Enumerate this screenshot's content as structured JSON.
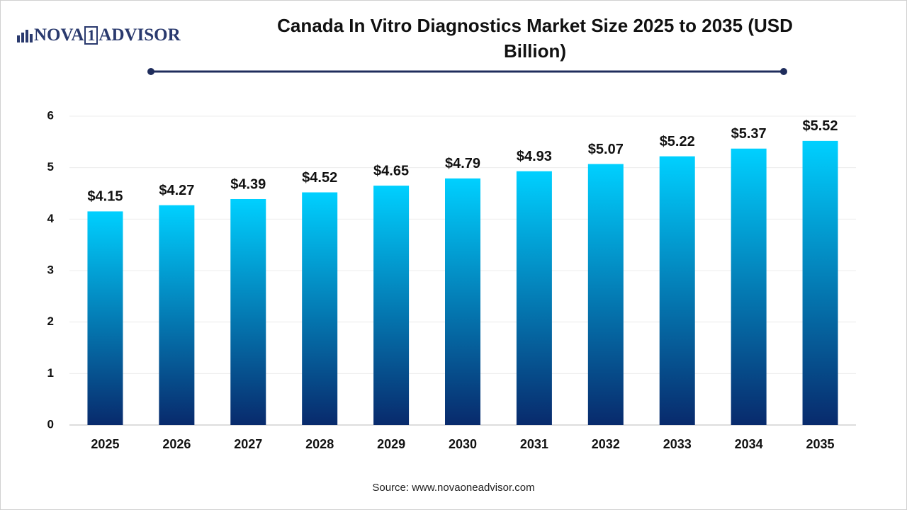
{
  "logo": {
    "left": "NOVA",
    "mark": "1",
    "right": "ADVISOR"
  },
  "source": "Source: www.novaoneadvisor.com",
  "chart_data": {
    "type": "bar",
    "title": "Canada In Vitro Diagnostics Market Size 2025 to 2035 (USD Billion)",
    "categories": [
      "2025",
      "2026",
      "2027",
      "2028",
      "2029",
      "2030",
      "2031",
      "2032",
      "2033",
      "2034",
      "2035"
    ],
    "values": [
      4.15,
      4.27,
      4.39,
      4.52,
      4.65,
      4.79,
      4.93,
      5.07,
      5.22,
      5.37,
      5.52
    ],
    "value_labels": [
      "$4.15",
      "$4.27",
      "$4.39",
      "$4.52",
      "$4.65",
      "$4.79",
      "$4.93",
      "$5.07",
      "$5.22",
      "$5.37",
      "$5.52"
    ],
    "color": [
      "#00d0ff",
      "#082a6c"
    ],
    "ylim": [
      0,
      6
    ],
    "yticks": [
      0,
      1,
      2,
      3,
      4,
      5,
      6
    ],
    "grid": true
  }
}
